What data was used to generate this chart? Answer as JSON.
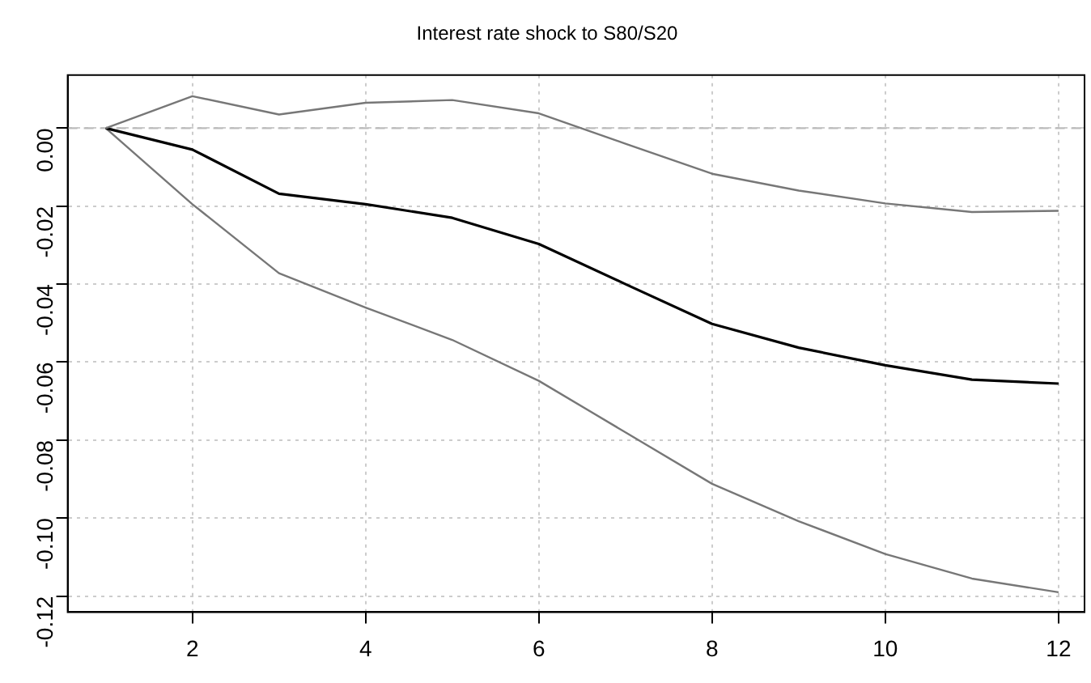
{
  "chart_data": {
    "type": "line",
    "title": "Interest rate shock to S80/S20",
    "x": [
      1,
      2,
      3,
      4,
      5,
      6,
      7,
      8,
      9,
      10,
      11,
      12
    ],
    "series": [
      {
        "color": "#777777",
        "values": [
          0,
          0.0082,
          0.0035,
          0.0065,
          0.0072,
          0.0038,
          -0.004,
          -0.0117,
          -0.016,
          -0.0193,
          -0.0215,
          -0.0212
        ]
      },
      {
        "color": "#000000",
        "values": [
          0,
          -0.0055,
          -0.0168,
          -0.0195,
          -0.023,
          -0.0297,
          -0.04,
          -0.0502,
          -0.0563,
          -0.0608,
          -0.0645,
          -0.0655
        ]
      },
      {
        "color": "#777777",
        "values": [
          0,
          -0.0195,
          -0.0372,
          -0.046,
          -0.0543,
          -0.0648,
          -0.078,
          -0.0912,
          -0.1008,
          -0.1092,
          -0.1155,
          -0.119
        ]
      }
    ],
    "xlim": [
      0.56,
      12.3
    ],
    "xticks": [
      2,
      4,
      6,
      8,
      10,
      12
    ],
    "ylim": [
      -0.1241,
      0.0136
    ],
    "yticks": [
      {
        "value": 0,
        "label": "0.00"
      },
      {
        "value": -0.02,
        "label": "-0.02"
      },
      {
        "value": -0.04,
        "label": "-0.04"
      },
      {
        "value": -0.06,
        "label": "-0.06"
      },
      {
        "value": -0.08,
        "label": "-0.08"
      },
      {
        "value": -0.1,
        "label": "-0.10"
      },
      {
        "value": -0.12,
        "label": "-0.12"
      }
    ],
    "ref_lines": [
      {
        "axis": "y",
        "value": 0,
        "color": "#bbbbbb",
        "line_style": "dashed"
      }
    ],
    "grid": true,
    "legend": false,
    "marker": "none",
    "line_style": "solid"
  }
}
